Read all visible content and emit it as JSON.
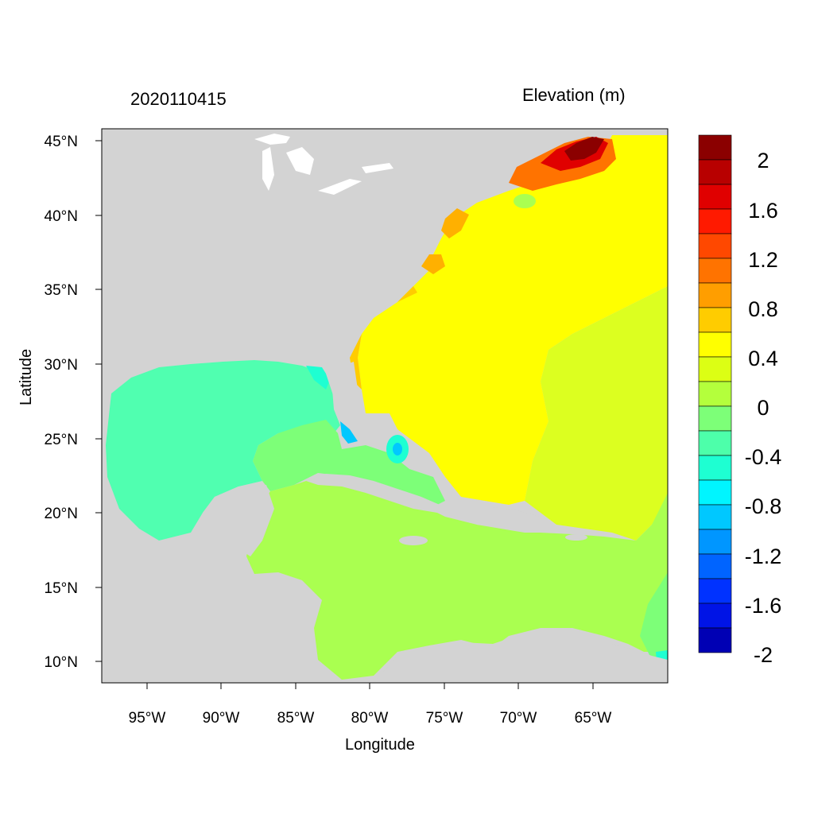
{
  "time_label": "2020110415",
  "variable_label": "Elevation (m)",
  "x_axis": {
    "label": "Longitude",
    "ticks": [
      "95°W",
      "90°W",
      "85°W",
      "80°W",
      "75°W",
      "70°W",
      "65°W"
    ]
  },
  "y_axis": {
    "label": "Latitude",
    "ticks": [
      "45°N",
      "40°N",
      "35°N",
      "30°N",
      "25°N",
      "20°N",
      "15°N",
      "10°N"
    ]
  },
  "colorbar": {
    "labels": [
      "2",
      "1.6",
      "1.2",
      "0.8",
      "0.4",
      "0",
      "-0.4",
      "-0.8",
      "-1.2",
      "-1.6",
      "-2"
    ],
    "colors": [
      "#8b0000",
      "#b80000",
      "#e00000",
      "#ff1a00",
      "#ff4800",
      "#ff7300",
      "#ff9e00",
      "#ffcc00",
      "#ffff00",
      "#dcff14",
      "#b4ff3c",
      "#7dff78",
      "#4dffaa",
      "#1effd2",
      "#00f5ff",
      "#00c8ff",
      "#0096ff",
      "#0064ff",
      "#0032ff",
      "#0014e6",
      "#0000b4"
    ]
  },
  "colors": {
    "land": "#d3d3d3",
    "gulf": "#50ffb0",
    "caribbean": "#aaff50",
    "atlantic": "#ffff00",
    "east_atlantic": "#dcff20",
    "coast_orange": "#ffcc00",
    "lakes": "#ffffff"
  }
}
